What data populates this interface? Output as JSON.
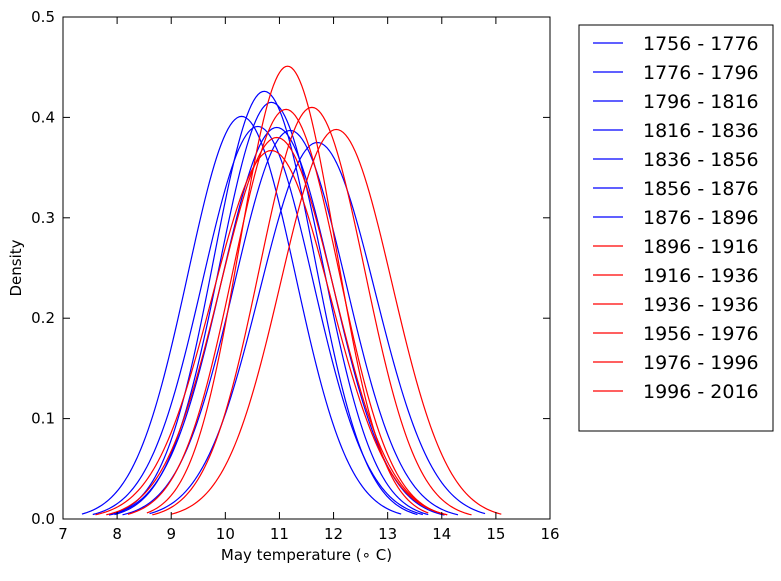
{
  "chart_data": {
    "type": "line",
    "title": "",
    "xlabel": "May temperature (∘ C)",
    "ylabel": "Density",
    "xlim": [
      7,
      16
    ],
    "ylim": [
      0,
      0.5
    ],
    "xticks": [
      "7",
      "8",
      "9",
      "10",
      "11",
      "12",
      "13",
      "14",
      "15",
      "16"
    ],
    "yticks": [
      "0.0",
      "0.1",
      "0.2",
      "0.3",
      "0.4",
      "0.5"
    ],
    "grid": false,
    "legend_position": "outside-right",
    "colors": {
      "early": "#0000ff",
      "late": "#ff0000"
    },
    "series": [
      {
        "name": "1756 - 1776",
        "color": "#0000ff",
        "mean": 10.3,
        "peak": 0.401,
        "x_range": [
          7.35,
          13.25
        ]
      },
      {
        "name": "1776 - 1796",
        "color": "#0000ff",
        "mean": 10.72,
        "peak": 0.426,
        "x_range": [
          7.9,
          13.55
        ]
      },
      {
        "name": "1796 - 1816",
        "color": "#0000ff",
        "mean": 10.85,
        "peak": 0.415,
        "x_range": [
          7.95,
          13.75
        ]
      },
      {
        "name": "1816 - 1836",
        "color": "#0000ff",
        "mean": 10.6,
        "peak": 0.391,
        "x_range": [
          7.55,
          13.65
        ]
      },
      {
        "name": "1836 - 1856",
        "color": "#0000ff",
        "mean": 11.2,
        "peak": 0.387,
        "x_range": [
          8.1,
          14.3
        ]
      },
      {
        "name": "1856 - 1876",
        "color": "#0000ff",
        "mean": 11.7,
        "peak": 0.375,
        "x_range": [
          8.6,
          14.8
        ]
      },
      {
        "name": "1876 - 1896",
        "color": "#0000ff",
        "mean": 10.95,
        "peak": 0.39,
        "x_range": [
          7.85,
          14.05
        ]
      },
      {
        "name": "1896 - 1916",
        "color": "#ff0000",
        "mean": 11.15,
        "peak": 0.451,
        "x_range": [
          8.55,
          13.75
        ]
      },
      {
        "name": "1916 - 1936",
        "color": "#ff0000",
        "mean": 11.12,
        "peak": 0.408,
        "x_range": [
          8.2,
          14.05
        ]
      },
      {
        "name": "1936 - 1936",
        "color": "#ff0000",
        "mean": 10.95,
        "peak": 0.38,
        "x_range": [
          7.8,
          14.1
        ]
      },
      {
        "name": "1956 - 1976",
        "color": "#ff0000",
        "mean": 10.85,
        "peak": 0.367,
        "x_range": [
          7.6,
          14.1
        ]
      },
      {
        "name": "1976 - 1996",
        "color": "#ff0000",
        "mean": 11.6,
        "peak": 0.41,
        "x_range": [
          8.65,
          14.55
        ]
      },
      {
        "name": "1996 - 2016",
        "color": "#ff0000",
        "mean": 12.05,
        "peak": 0.388,
        "x_range": [
          9.0,
          15.1
        ]
      }
    ]
  }
}
